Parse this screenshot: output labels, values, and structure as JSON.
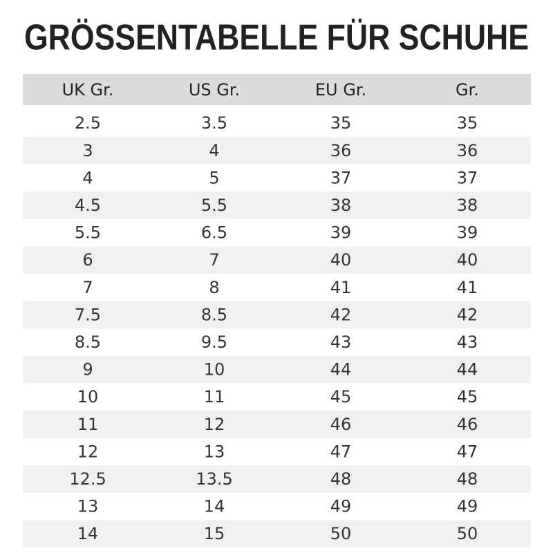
{
  "title": "GRÖSSENTABELLE FÜR SCHUHE",
  "table": {
    "headers": [
      "UK Gr.",
      "US Gr.",
      "EU Gr.",
      "Gr."
    ],
    "rows": [
      [
        2.5,
        3.5,
        35,
        35
      ],
      [
        3,
        4,
        36,
        36
      ],
      [
        4,
        5,
        37,
        37
      ],
      [
        4.5,
        5.5,
        38,
        38
      ],
      [
        5.5,
        6.5,
        39,
        39
      ],
      [
        6,
        7,
        40,
        40
      ],
      [
        7,
        8,
        41,
        41
      ],
      [
        7.5,
        8.5,
        42,
        42
      ],
      [
        8.5,
        9.5,
        43,
        43
      ],
      [
        9,
        10,
        44,
        44
      ],
      [
        10,
        11,
        45,
        45
      ],
      [
        11,
        12,
        46,
        46
      ],
      [
        12,
        13,
        47,
        47
      ],
      [
        12.5,
        13.5,
        48,
        48
      ],
      [
        13,
        14,
        49,
        49
      ],
      [
        14,
        15,
        50,
        50
      ]
    ]
  }
}
